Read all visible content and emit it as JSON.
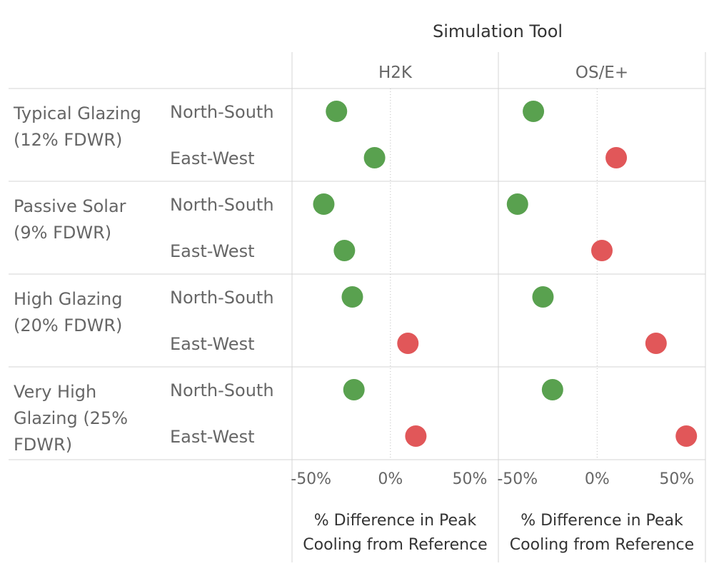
{
  "chart_data": {
    "type": "scatter",
    "title": "Simulation Tool",
    "panels": [
      "H2K",
      "OS/E+"
    ],
    "groups": [
      {
        "label_lines": [
          "Typical Glazing",
          "(12% FDWR)"
        ],
        "orientations": [
          "North-South",
          "East-West"
        ]
      },
      {
        "label_lines": [
          "Passive Solar",
          "(9% FDWR)"
        ],
        "orientations": [
          "North-South",
          "East-West"
        ]
      },
      {
        "label_lines": [
          "High Glazing",
          "(20% FDWR)"
        ],
        "orientations": [
          "North-South",
          "East-West"
        ]
      },
      {
        "label_lines": [
          "Very High",
          "Glazing (25%",
          "FDWR)"
        ],
        "orientations": [
          "North-South",
          "East-West"
        ]
      }
    ],
    "xlim": [
      -62,
      68
    ],
    "ticks": [
      -50,
      0,
      50
    ],
    "tick_labels": [
      "-50%",
      "0%",
      "50%"
    ],
    "xlabel_lines": [
      "% Difference in Peak",
      "Cooling from Reference"
    ],
    "colors": {
      "negative": "#59A14F",
      "positive": "#E15759"
    },
    "values": {
      "H2K": [
        -34,
        -10,
        -42,
        -29,
        -24,
        11,
        -23,
        16
      ],
      "OS/E+": [
        -40,
        12,
        -50,
        3,
        -34,
        37,
        -28,
        56
      ]
    }
  }
}
